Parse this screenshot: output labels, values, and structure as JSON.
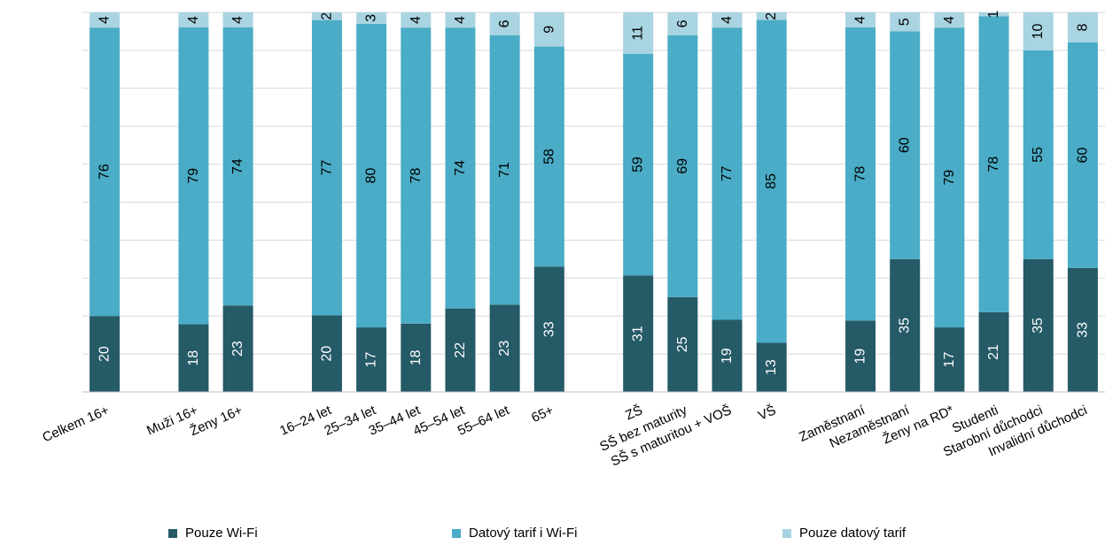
{
  "chart_data": {
    "type": "bar",
    "stacked": true,
    "stack_mode": "percent",
    "categories": [
      "Celkem 16+",
      "",
      "Muži 16+",
      "Ženy 16+",
      "",
      "16–24 let",
      "25–34 let",
      "35–44 let",
      "45–54 let",
      "55–64 let",
      "65+",
      "",
      "ZŠ",
      "SŠ bez maturity",
      "SŠ s maturitou + VOŠ",
      "VŠ",
      "",
      "Zaměstnaní",
      "Nezaměstnaní",
      "Ženy na RD*",
      "Studenti",
      "Starobní důchodci",
      "Invalidní důchodci"
    ],
    "series": [
      {
        "name": "Pouze Wi-Fi",
        "color": "#255a67",
        "values": [
          20,
          null,
          18,
          23,
          null,
          20,
          17,
          18,
          22,
          23,
          33,
          null,
          31,
          25,
          19,
          13,
          null,
          19,
          35,
          17,
          21,
          35,
          33
        ]
      },
      {
        "name": "Datový tarif i Wi-Fi",
        "color": "#4aacc6",
        "values": [
          76,
          null,
          79,
          74,
          null,
          77,
          80,
          78,
          74,
          71,
          58,
          null,
          59,
          69,
          77,
          85,
          null,
          78,
          60,
          79,
          78,
          55,
          60
        ]
      },
      {
        "name": "Pouze datový tarif",
        "color": "#a9d4e1",
        "values": [
          4,
          null,
          4,
          4,
          null,
          2,
          3,
          4,
          4,
          6,
          9,
          null,
          11,
          6,
          4,
          2,
          null,
          4,
          5,
          4,
          1,
          10,
          8
        ]
      }
    ],
    "ylim": [
      0,
      100
    ],
    "grid": true,
    "legend_position": "bottom"
  }
}
